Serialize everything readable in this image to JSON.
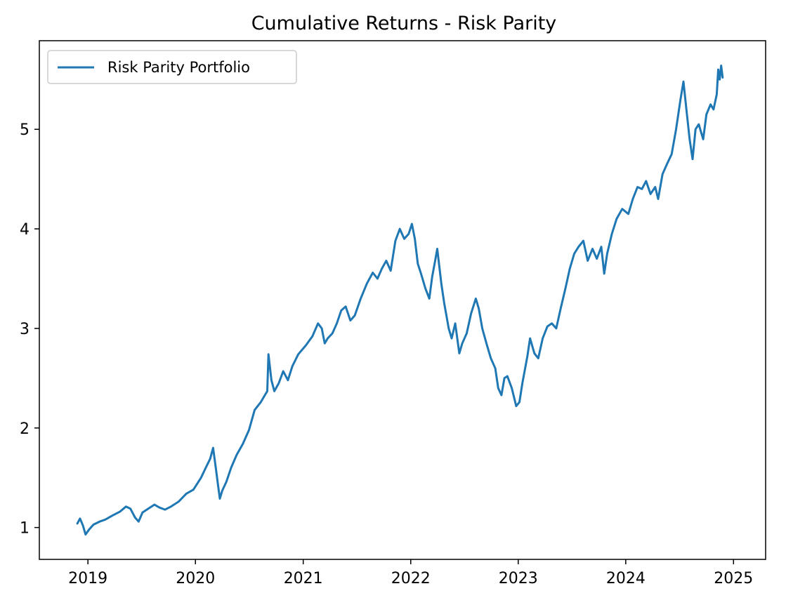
{
  "chart_data": {
    "type": "line",
    "title": "Cumulative Returns - Risk Parity",
    "xlabel": "",
    "ylabel": "",
    "x_tick_labels": [
      "2019",
      "2020",
      "2021",
      "2022",
      "2023",
      "2024",
      "2025"
    ],
    "y_tick_labels": [
      "1",
      "2",
      "3",
      "4",
      "5"
    ],
    "xlim": [
      "2018-07-20",
      "2025-04-20"
    ],
    "ylim": [
      0.68,
      5.89
    ],
    "grid": false,
    "legend": {
      "position": "top-left",
      "entries": [
        "Risk Parity Portfolio"
      ]
    },
    "series": [
      {
        "name": "Risk Parity Portfolio",
        "color": "#1f77b4",
        "points": [
          [
            "2018-11-26",
            1.04
          ],
          [
            "2018-12-05",
            1.09
          ],
          [
            "2018-12-15",
            1.02
          ],
          [
            "2018-12-24",
            0.93
          ],
          [
            "2019-01-05",
            0.98
          ],
          [
            "2019-01-20",
            1.03
          ],
          [
            "2019-02-10",
            1.06
          ],
          [
            "2019-03-01",
            1.08
          ],
          [
            "2019-03-25",
            1.12
          ],
          [
            "2019-04-20",
            1.16
          ],
          [
            "2019-05-10",
            1.21
          ],
          [
            "2019-05-25",
            1.19
          ],
          [
            "2019-06-10",
            1.1
          ],
          [
            "2019-06-22",
            1.06
          ],
          [
            "2019-07-05",
            1.15
          ],
          [
            "2019-07-25",
            1.19
          ],
          [
            "2019-08-15",
            1.23
          ],
          [
            "2019-09-01",
            1.2
          ],
          [
            "2019-09-20",
            1.18
          ],
          [
            "2019-10-10",
            1.21
          ],
          [
            "2019-11-05",
            1.26
          ],
          [
            "2019-12-01",
            1.34
          ],
          [
            "2019-12-25",
            1.38
          ],
          [
            "2020-01-20",
            1.5
          ],
          [
            "2020-02-05",
            1.6
          ],
          [
            "2020-02-20",
            1.69
          ],
          [
            "2020-03-01",
            1.8
          ],
          [
            "2020-03-10",
            1.6
          ],
          [
            "2020-03-18",
            1.42
          ],
          [
            "2020-03-24",
            1.29
          ],
          [
            "2020-04-01",
            1.37
          ],
          [
            "2020-04-15",
            1.46
          ],
          [
            "2020-05-01",
            1.6
          ],
          [
            "2020-05-20",
            1.73
          ],
          [
            "2020-06-10",
            1.84
          ],
          [
            "2020-07-01",
            1.98
          ],
          [
            "2020-07-20",
            2.18
          ],
          [
            "2020-08-10",
            2.26
          ],
          [
            "2020-09-01",
            2.37
          ],
          [
            "2020-09-05",
            2.74
          ],
          [
            "2020-09-15",
            2.48
          ],
          [
            "2020-09-25",
            2.37
          ],
          [
            "2020-10-10",
            2.45
          ],
          [
            "2020-10-25",
            2.57
          ],
          [
            "2020-11-10",
            2.48
          ],
          [
            "2020-11-25",
            2.62
          ],
          [
            "2020-12-15",
            2.74
          ],
          [
            "2021-01-10",
            2.83
          ],
          [
            "2021-02-01",
            2.92
          ],
          [
            "2021-02-20",
            3.05
          ],
          [
            "2021-03-05",
            3.0
          ],
          [
            "2021-03-15",
            2.85
          ],
          [
            "2021-03-25",
            2.9
          ],
          [
            "2021-04-10",
            2.95
          ],
          [
            "2021-04-25",
            3.05
          ],
          [
            "2021-05-10",
            3.18
          ],
          [
            "2021-05-25",
            3.22
          ],
          [
            "2021-06-10",
            3.08
          ],
          [
            "2021-06-25",
            3.13
          ],
          [
            "2021-07-15",
            3.3
          ],
          [
            "2021-08-05",
            3.45
          ],
          [
            "2021-08-25",
            3.56
          ],
          [
            "2021-09-10",
            3.5
          ],
          [
            "2021-09-25",
            3.6
          ],
          [
            "2021-10-10",
            3.68
          ],
          [
            "2021-10-25",
            3.58
          ],
          [
            "2021-11-10",
            3.88
          ],
          [
            "2021-11-25",
            4.0
          ],
          [
            "2021-12-10",
            3.9
          ],
          [
            "2021-12-25",
            3.95
          ],
          [
            "2022-01-05",
            4.05
          ],
          [
            "2022-01-15",
            3.9
          ],
          [
            "2022-01-25",
            3.65
          ],
          [
            "2022-02-05",
            3.55
          ],
          [
            "2022-02-20",
            3.4
          ],
          [
            "2022-03-05",
            3.3
          ],
          [
            "2022-03-15",
            3.52
          ],
          [
            "2022-03-25",
            3.68
          ],
          [
            "2022-04-01",
            3.8
          ],
          [
            "2022-04-15",
            3.45
          ],
          [
            "2022-04-25",
            3.25
          ],
          [
            "2022-05-10",
            3.0
          ],
          [
            "2022-05-20",
            2.9
          ],
          [
            "2022-06-01",
            3.05
          ],
          [
            "2022-06-15",
            2.75
          ],
          [
            "2022-06-25",
            2.85
          ],
          [
            "2022-07-10",
            2.95
          ],
          [
            "2022-07-25",
            3.15
          ],
          [
            "2022-08-10",
            3.3
          ],
          [
            "2022-08-20",
            3.2
          ],
          [
            "2022-09-01",
            3.0
          ],
          [
            "2022-09-15",
            2.85
          ],
          [
            "2022-09-30",
            2.7
          ],
          [
            "2022-10-15",
            2.6
          ],
          [
            "2022-10-25",
            2.4
          ],
          [
            "2022-11-05",
            2.33
          ],
          [
            "2022-11-15",
            2.5
          ],
          [
            "2022-11-25",
            2.52
          ],
          [
            "2022-12-10",
            2.4
          ],
          [
            "2022-12-25",
            2.22
          ],
          [
            "2023-01-05",
            2.26
          ],
          [
            "2023-01-15",
            2.45
          ],
          [
            "2023-02-01",
            2.72
          ],
          [
            "2023-02-10",
            2.9
          ],
          [
            "2023-02-25",
            2.75
          ],
          [
            "2023-03-10",
            2.7
          ],
          [
            "2023-03-25",
            2.9
          ],
          [
            "2023-04-10",
            3.02
          ],
          [
            "2023-04-25",
            3.05
          ],
          [
            "2023-05-10",
            3.0
          ],
          [
            "2023-05-25",
            3.2
          ],
          [
            "2023-06-10",
            3.4
          ],
          [
            "2023-06-25",
            3.6
          ],
          [
            "2023-07-10",
            3.75
          ],
          [
            "2023-07-25",
            3.82
          ],
          [
            "2023-08-10",
            3.88
          ],
          [
            "2023-08-25",
            3.68
          ],
          [
            "2023-09-10",
            3.8
          ],
          [
            "2023-09-25",
            3.7
          ],
          [
            "2023-10-10",
            3.82
          ],
          [
            "2023-10-20",
            3.55
          ],
          [
            "2023-10-30",
            3.75
          ],
          [
            "2023-11-15",
            3.95
          ],
          [
            "2023-12-01",
            4.1
          ],
          [
            "2023-12-20",
            4.2
          ],
          [
            "2024-01-10",
            4.15
          ],
          [
            "2024-01-25",
            4.3
          ],
          [
            "2024-02-10",
            4.42
          ],
          [
            "2024-02-25",
            4.4
          ],
          [
            "2024-03-10",
            4.48
          ],
          [
            "2024-03-25",
            4.35
          ],
          [
            "2024-04-10",
            4.42
          ],
          [
            "2024-04-20",
            4.3
          ],
          [
            "2024-05-05",
            4.55
          ],
          [
            "2024-05-20",
            4.65
          ],
          [
            "2024-06-05",
            4.75
          ],
          [
            "2024-06-20",
            5.0
          ],
          [
            "2024-07-05",
            5.3
          ],
          [
            "2024-07-15",
            5.48
          ],
          [
            "2024-07-25",
            5.2
          ],
          [
            "2024-08-05",
            4.9
          ],
          [
            "2024-08-15",
            4.7
          ],
          [
            "2024-08-25",
            5.0
          ],
          [
            "2024-09-05",
            5.05
          ],
          [
            "2024-09-20",
            4.9
          ],
          [
            "2024-10-01",
            5.15
          ],
          [
            "2024-10-15",
            5.25
          ],
          [
            "2024-10-25",
            5.2
          ],
          [
            "2024-11-05",
            5.35
          ],
          [
            "2024-11-10",
            5.6
          ],
          [
            "2024-11-15",
            5.5
          ],
          [
            "2024-11-20",
            5.64
          ],
          [
            "2024-11-25",
            5.52
          ]
        ]
      }
    ]
  }
}
